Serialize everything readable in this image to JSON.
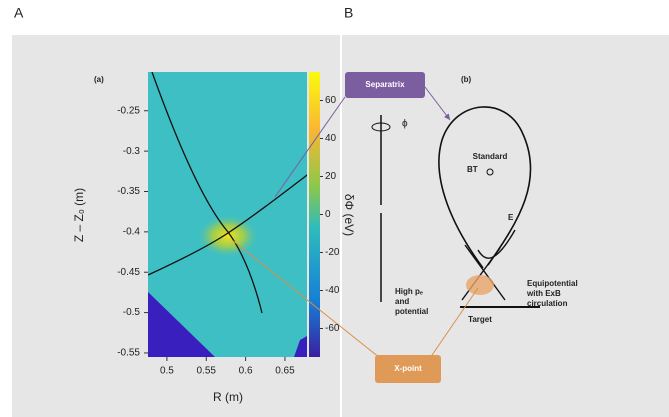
{
  "panel_labels": [
    "A",
    "B"
  ],
  "panel_a": {
    "tag": "(a)",
    "x_label": "R (m)",
    "y_label": "Z – Z₀ (m)",
    "colorbar_label": "δΦ (eV)",
    "xlim": [
      0.476,
      0.678
    ],
    "xticks": [
      0.5,
      0.55,
      0.6,
      0.65
    ],
    "ylim": [
      -0.555,
      -0.202
    ],
    "yticks": [
      -0.25,
      -0.3,
      -0.35,
      -0.4,
      -0.45,
      -0.5,
      -0.55
    ],
    "clim": [
      -75,
      75
    ],
    "cticks": [
      60,
      40,
      20,
      0,
      -20,
      -40,
      -60
    ]
  },
  "panel_b": {
    "tag": "(b)",
    "separatrix": "Separatrix",
    "xpoint": "X-point",
    "phi": "ϕ",
    "standard": "Standard",
    "bt": "BT",
    "e_field": "E",
    "high_pe": [
      "High pₑ",
      "and",
      "potential"
    ],
    "equipotential": [
      "Equipotential",
      "with ExB",
      "circulation"
    ],
    "target": "Target"
  }
}
